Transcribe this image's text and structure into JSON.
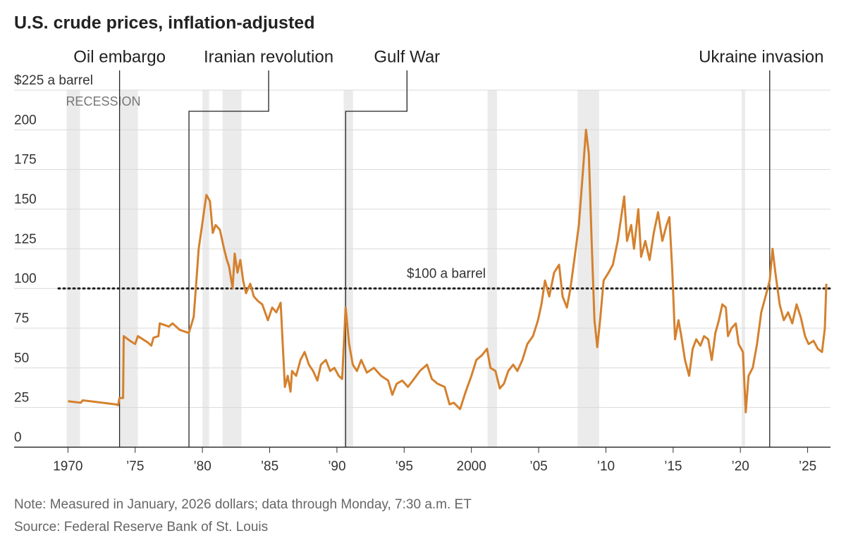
{
  "chart_data": {
    "type": "line",
    "title": "U.S. crude prices, inflation-adjusted",
    "note": "Note: Measured in January, 2026 dollars; data through Monday, 7:30 a.m. ET",
    "source": "Source: Federal Reserve Bank of St. Louis",
    "xlim": [
      1969.3,
      2026.7
    ],
    "ylim": [
      0,
      225
    ],
    "xticks": [
      1970,
      {
        "value": 1975,
        "label": "’75"
      },
      {
        "value": 1980,
        "label": "’80"
      },
      {
        "value": 1985,
        "label": "’85"
      },
      {
        "value": 1990,
        "label": "’90"
      },
      {
        "value": 1995,
        "label": "’95"
      },
      2000,
      {
        "value": 2005,
        "label": "’05"
      },
      {
        "value": 2010,
        "label": "’10"
      },
      {
        "value": 2015,
        "label": "’15"
      },
      {
        "value": 2020,
        "label": "’20"
      },
      {
        "value": 2025,
        "label": "’25"
      }
    ],
    "yticks": [
      0,
      25,
      50,
      75,
      100,
      125,
      150,
      175,
      200,
      {
        "value": 225,
        "label": "$225 a barrel"
      }
    ],
    "grid": true,
    "reference_line": {
      "value": 100,
      "label": "$100 a barrel"
    },
    "recession_label": "RECESSION",
    "recessions": [
      [
        1969.9,
        1970.9
      ],
      [
        1973.9,
        1975.2
      ],
      [
        1980.0,
        1980.5
      ],
      [
        1981.5,
        1982.9
      ],
      [
        1990.5,
        1991.2
      ],
      [
        2001.2,
        2001.9
      ],
      [
        2007.9,
        2009.5
      ],
      [
        2020.1,
        2020.35
      ]
    ],
    "events": [
      {
        "label": "Oil embargo",
        "x": 1973.84
      },
      {
        "label": "Iranian revolution",
        "x": 1979.0
      },
      {
        "label": "Gulf War",
        "x": 1990.65
      },
      {
        "label": "Ukraine invasion",
        "x": 2022.18
      }
    ],
    "series": [
      {
        "name": "U.S. crude price",
        "color": "#d4812e",
        "x": [
          1970.0,
          1970.95,
          1971.1,
          1973.57,
          1973.73,
          1973.84,
          1974.1,
          1974.15,
          1974.62,
          1975.0,
          1975.2,
          1975.94,
          1976.2,
          1976.36,
          1976.73,
          1976.83,
          1977.51,
          1977.78,
          1978.3,
          1978.99,
          1979.35,
          1979.51,
          1979.72,
          1979.98,
          1980.14,
          1980.3,
          1980.56,
          1980.77,
          1980.98,
          1981.3,
          1981.61,
          1981.82,
          1981.98,
          1982.24,
          1982.4,
          1982.61,
          1982.82,
          1983.03,
          1983.24,
          1983.56,
          1983.82,
          1984.14,
          1984.45,
          1984.87,
          1985.19,
          1985.5,
          1985.82,
          1986.13,
          1986.34,
          1986.55,
          1986.66,
          1986.97,
          1987.29,
          1987.6,
          1987.92,
          1988.23,
          1988.55,
          1988.81,
          1989.18,
          1989.5,
          1989.81,
          1990.13,
          1990.39,
          1990.65,
          1990.91,
          1991.18,
          1991.49,
          1991.81,
          1992.23,
          1992.75,
          1993.28,
          1993.81,
          1994.12,
          1994.44,
          1994.86,
          1995.28,
          1995.64,
          1996.17,
          1996.7,
          1997.06,
          1997.48,
          1998.01,
          1998.38,
          1998.69,
          1999.16,
          1999.58,
          2000.0,
          2000.37,
          2000.79,
          2001.16,
          2001.42,
          2001.79,
          2002.11,
          2002.42,
          2002.74,
          2003.11,
          2003.42,
          2003.79,
          2004.16,
          2004.58,
          2004.95,
          2005.21,
          2005.47,
          2005.79,
          2006.15,
          2006.52,
          2006.78,
          2007.1,
          2007.36,
          2007.68,
          2007.99,
          2008.26,
          2008.52,
          2008.73,
          2008.94,
          2009.15,
          2009.36,
          2009.57,
          2009.83,
          2010.2,
          2010.52,
          2010.88,
          2011.36,
          2011.57,
          2011.88,
          2012.09,
          2012.41,
          2012.62,
          2012.93,
          2013.25,
          2013.56,
          2013.88,
          2014.2,
          2014.51,
          2014.72,
          2014.93,
          2015.14,
          2015.4,
          2015.61,
          2015.88,
          2016.19,
          2016.45,
          2016.72,
          2017.03,
          2017.3,
          2017.61,
          2017.87,
          2018.14,
          2018.4,
          2018.66,
          2018.92,
          2019.08,
          2019.34,
          2019.66,
          2019.87,
          2020.19,
          2020.4,
          2020.61,
          2020.92,
          2021.24,
          2021.55,
          2021.87,
          2022.18,
          2022.39,
          2022.6,
          2022.92,
          2023.23,
          2023.55,
          2023.86,
          2024.18,
          2024.49,
          2024.81,
          2025.07,
          2025.44,
          2025.76,
          2026.07,
          2026.28,
          2026.39
        ],
        "values": [
          29,
          28,
          29.5,
          27,
          26.5,
          31,
          31,
          70,
          67,
          65,
          70,
          66,
          64,
          69,
          70,
          78,
          76,
          78,
          74,
          72,
          82,
          100,
          125,
          140,
          150,
          159,
          155,
          135,
          140,
          137,
          125,
          118,
          114,
          100,
          122,
          110,
          118,
          105,
          97,
          103,
          95,
          92,
          90,
          80,
          88,
          85,
          91,
          38,
          45,
          35,
          48,
          45,
          55,
          60,
          52,
          48,
          42,
          52,
          55,
          48,
          50,
          45,
          43,
          88,
          65,
          52,
          48,
          55,
          47,
          50,
          45,
          42,
          33,
          40,
          42,
          38,
          42,
          48,
          52,
          43,
          40,
          38,
          27,
          28,
          24,
          35,
          45,
          55,
          58,
          62,
          50,
          48,
          37,
          40,
          48,
          52,
          48,
          55,
          65,
          70,
          80,
          90,
          105,
          95,
          110,
          115,
          95,
          88,
          100,
          120,
          140,
          170,
          200,
          185,
          130,
          80,
          63,
          80,
          105,
          110,
          115,
          130,
          158,
          130,
          140,
          125,
          150,
          120,
          130,
          118,
          135,
          148,
          130,
          140,
          145,
          112,
          68,
          80,
          70,
          55,
          45,
          62,
          68,
          64,
          70,
          68,
          55,
          72,
          80,
          90,
          88,
          70,
          75,
          78,
          65,
          60,
          22,
          45,
          50,
          65,
          85,
          95,
          105,
          125,
          110,
          90,
          80,
          85,
          78,
          90,
          82,
          70,
          65,
          67,
          62,
          60,
          75,
          103
        ]
      }
    ]
  }
}
